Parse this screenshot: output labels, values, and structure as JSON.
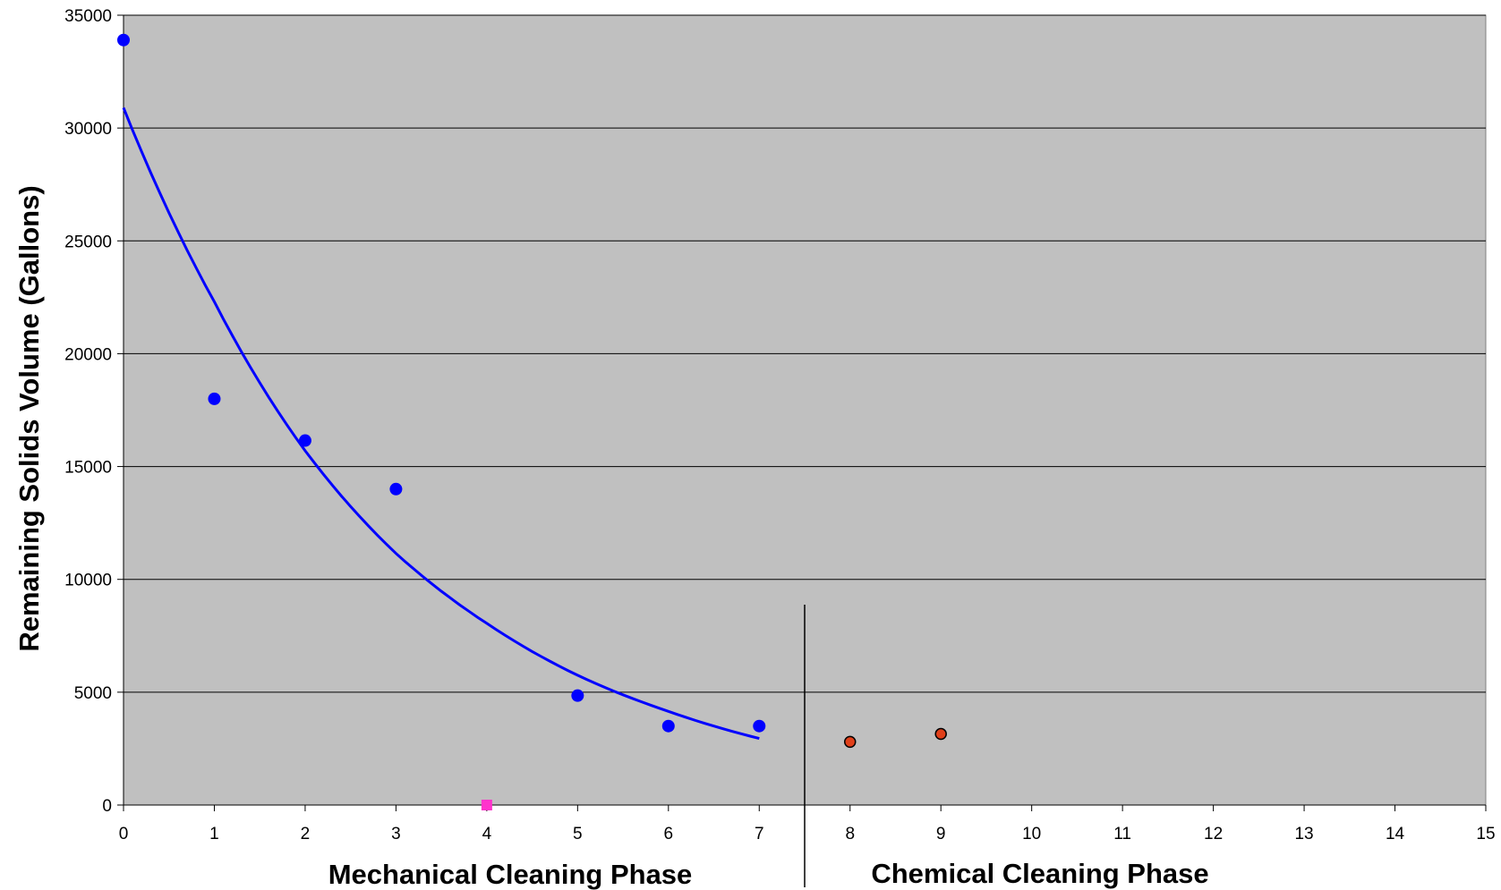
{
  "chart_data": {
    "type": "scatter",
    "title": "",
    "ylabel": "Remaining Solids Volume (Gallons)",
    "phase_labels": {
      "mechanical": "Mechanical Cleaning Phase",
      "chemical": "Chemical Cleaning Phase"
    },
    "xlim": [
      0,
      15
    ],
    "ylim": [
      0,
      35000
    ],
    "x_ticks": [
      "0",
      "1",
      "2",
      "3",
      "4",
      "5",
      "6",
      "7",
      "8",
      "9",
      "10",
      "11",
      "12",
      "13",
      "14",
      "15"
    ],
    "y_ticks": [
      "0",
      "5000",
      "10000",
      "15000",
      "20000",
      "25000",
      "30000",
      "35000"
    ],
    "grid": "horizontal",
    "legend": "none",
    "phase_divider_x": 7.5,
    "series": [
      {
        "marker": "circle",
        "color": "#0000ff",
        "points": [
          [
            0,
            33900
          ],
          [
            1,
            18000
          ],
          [
            2,
            16150
          ],
          [
            3,
            14000
          ],
          [
            5,
            4850
          ],
          [
            6,
            3500
          ],
          [
            7,
            3500
          ]
        ]
      },
      {
        "marker": "square",
        "color": "#ff33cc",
        "points": [
          [
            4,
            0
          ]
        ]
      },
      {
        "marker": "circle",
        "color": "#e0401a",
        "stroke": "#000000",
        "points": [
          [
            8,
            2800
          ],
          [
            9,
            3150
          ]
        ]
      }
    ],
    "trendline": {
      "type": "exponential",
      "color": "#0000ff",
      "x_range": [
        0,
        7
      ],
      "points": [
        [
          0,
          30900
        ],
        [
          1,
          22300
        ],
        [
          2,
          15700
        ],
        [
          3,
          11150
        ],
        [
          4,
          8050
        ],
        [
          5,
          5750
        ],
        [
          6,
          4150
        ],
        [
          7,
          2950
        ]
      ]
    },
    "colors": {
      "plot_background": "#c0c0c0",
      "gridline": "#000000"
    }
  }
}
